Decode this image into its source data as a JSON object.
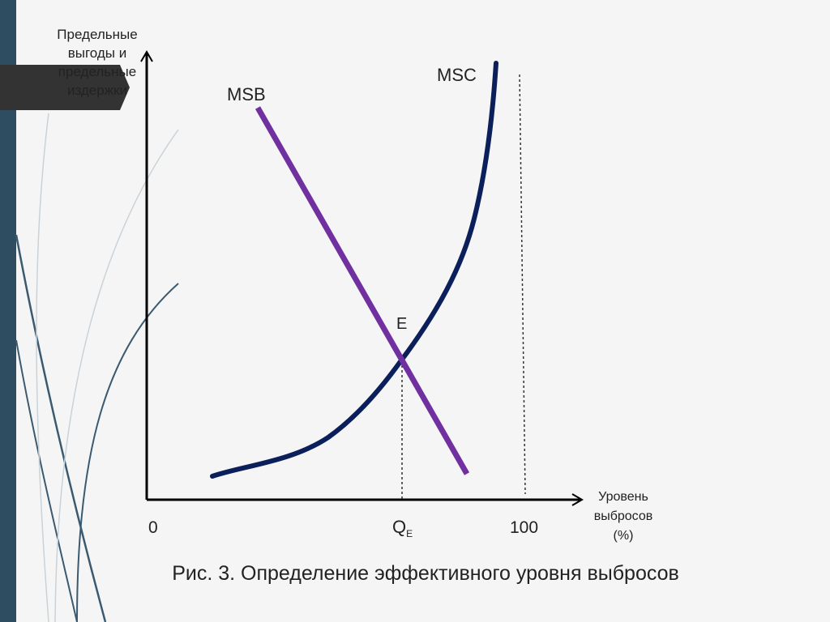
{
  "axes": {
    "y_label": [
      "Предельные",
      "выгоды и",
      "предельные",
      "издержки"
    ],
    "x_label": [
      "Уровень",
      "выбросов",
      "(%)"
    ]
  },
  "curves": {
    "msb": "MSB",
    "msc": "MSC"
  },
  "point": "E",
  "x_marks": {
    "origin": "0",
    "q": {
      "main": "Q",
      "sub": "E"
    },
    "max": "100"
  },
  "caption": "Рис. 3. Определение эффективного уровня выбросов"
}
